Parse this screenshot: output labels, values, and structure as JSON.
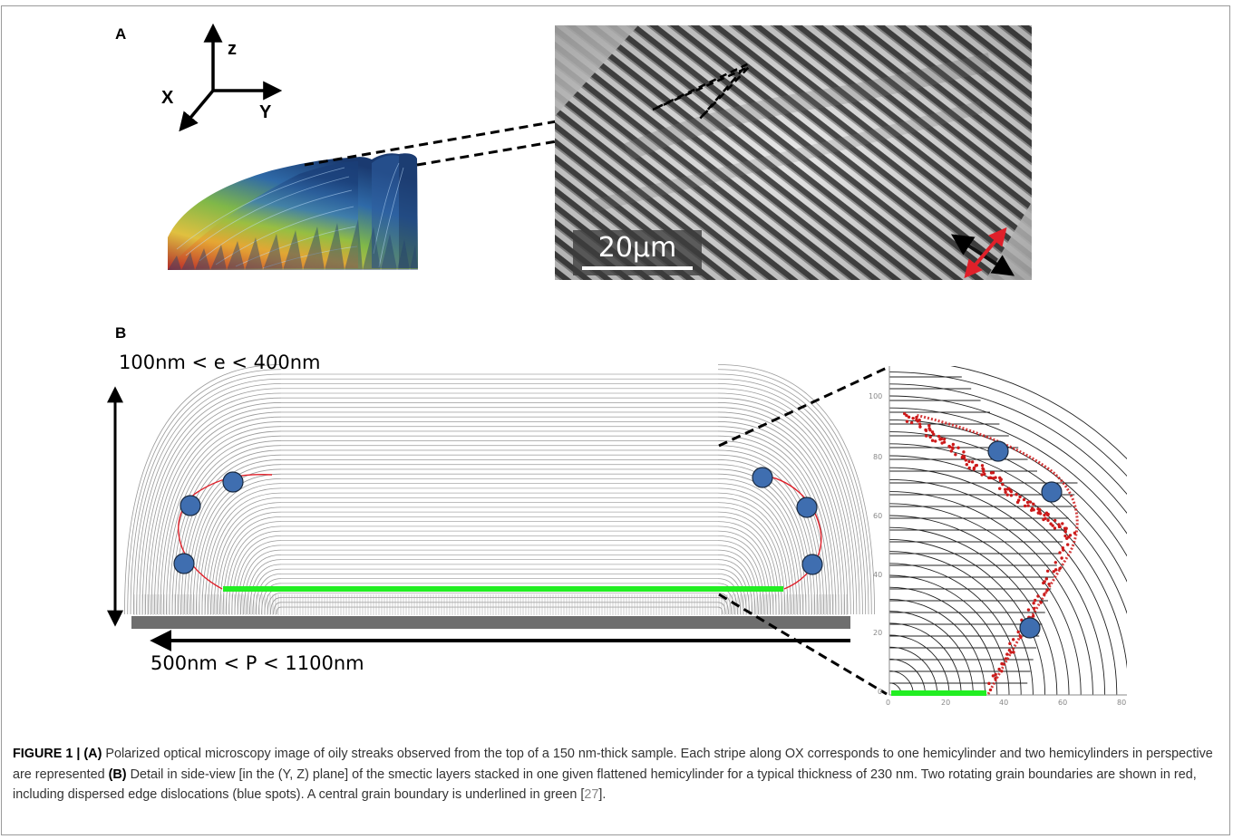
{
  "panels": {
    "a": "A",
    "b": "B"
  },
  "axes": {
    "z": "z",
    "x": "X",
    "y": "Y"
  },
  "scale_bar": "20µm",
  "dimensions": {
    "thickness": "100nm < e < 400nm",
    "period": "500nm < P < 1100nm"
  },
  "zoom_plot": {
    "y_ticks": [
      "100",
      "80",
      "60",
      "40",
      "20",
      "0"
    ],
    "x_ticks": [
      "0",
      "20",
      "40",
      "60",
      "80"
    ]
  },
  "caption": {
    "figure_label": "FIGURE 1 | ",
    "a_label": "(A)",
    "text_a": " Polarized optical microscopy image of oily streaks observed from the top of a 150 nm-thick sample. Each stripe along OX corresponds to one hemicylinder and two hemicylinders in perspective are represented ",
    "b_label": "(B)",
    "text_b": " Detail in side-view [in the (Y, Z) plane] of the smectic layers stacked in one given flattened hemicylinder for a typical thickness of 230 nm. Two rotating grain boundaries are shown in red, including dispersed edge dislocations (blue spots). A central grain boundary is underlined in green [",
    "ref": "27",
    "text_end": "]."
  },
  "colors": {
    "grain_boundary": "#e0202a",
    "central_boundary": "#22ee22",
    "dislocation": "#3f6eb0",
    "substrate": "#6e6e6e"
  }
}
